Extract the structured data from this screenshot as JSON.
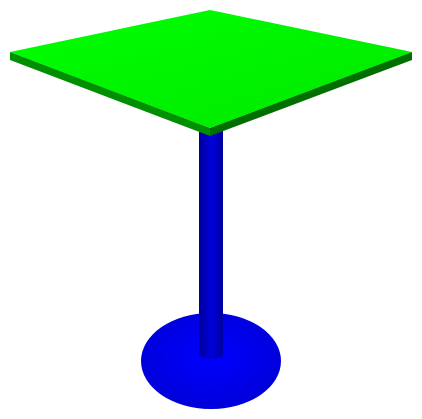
{
  "scene": {
    "subject": "table",
    "colors": {
      "background": "#ffffff",
      "tabletop_top": "#00ff00",
      "tabletop_top_shade": "#00e800",
      "tabletop_edge": "#008f00",
      "tabletop_edge_dark": "#006f00",
      "post": "#0000dd",
      "post_shade": "#00009a",
      "base": "#0000ff",
      "base_shadow": "#0000d6"
    }
  }
}
